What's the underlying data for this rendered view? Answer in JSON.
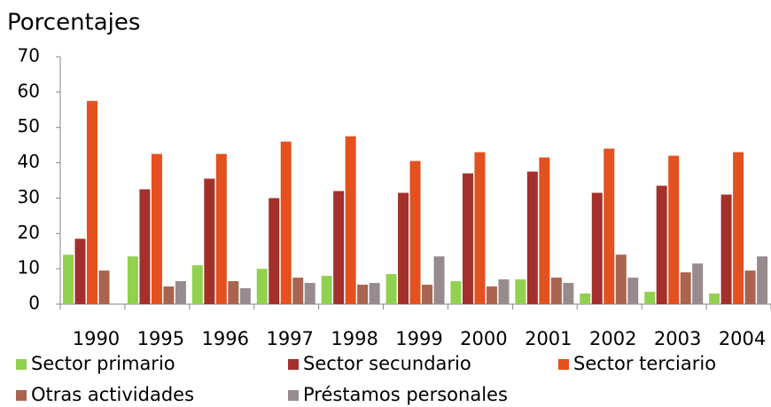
{
  "chart_data": {
    "type": "bar",
    "title": "Porcentajes",
    "categories": [
      "1990",
      "1995",
      "1996",
      "1997",
      "1998",
      "1999",
      "2000",
      "2001",
      "2002",
      "2003",
      "2004"
    ],
    "series": [
      {
        "name": "Sector primario",
        "color": "#92d050",
        "values": [
          14,
          13.5,
          11,
          10,
          8,
          8.5,
          6.5,
          7,
          3,
          3.5,
          3
        ]
      },
      {
        "name": "Sector secundario",
        "color": "#a3302a",
        "values": [
          18.5,
          32.5,
          35.5,
          30,
          32,
          31.5,
          37,
          37.5,
          31.5,
          33.5,
          31
        ]
      },
      {
        "name": "Sector terciario",
        "color": "#e4501e",
        "values": [
          57.5,
          42.5,
          42.5,
          46,
          47.5,
          40.5,
          43,
          41.5,
          44,
          42,
          43
        ]
      },
      {
        "name": "Otras actividades",
        "color": "#a8644e",
        "values": [
          9.5,
          5,
          6.5,
          7.5,
          5.5,
          5.5,
          5,
          7.5,
          14,
          9,
          9.5
        ]
      },
      {
        "name": "Préstamos personales",
        "color": "#978b8e",
        "values": [
          null,
          6.5,
          4.5,
          6,
          6,
          13.5,
          7,
          6,
          7.5,
          11.5,
          13.5
        ]
      }
    ],
    "ylim": [
      0,
      70
    ],
    "yticks": [
      0,
      10,
      20,
      30,
      40,
      50,
      60,
      70
    ],
    "grid": false
  }
}
